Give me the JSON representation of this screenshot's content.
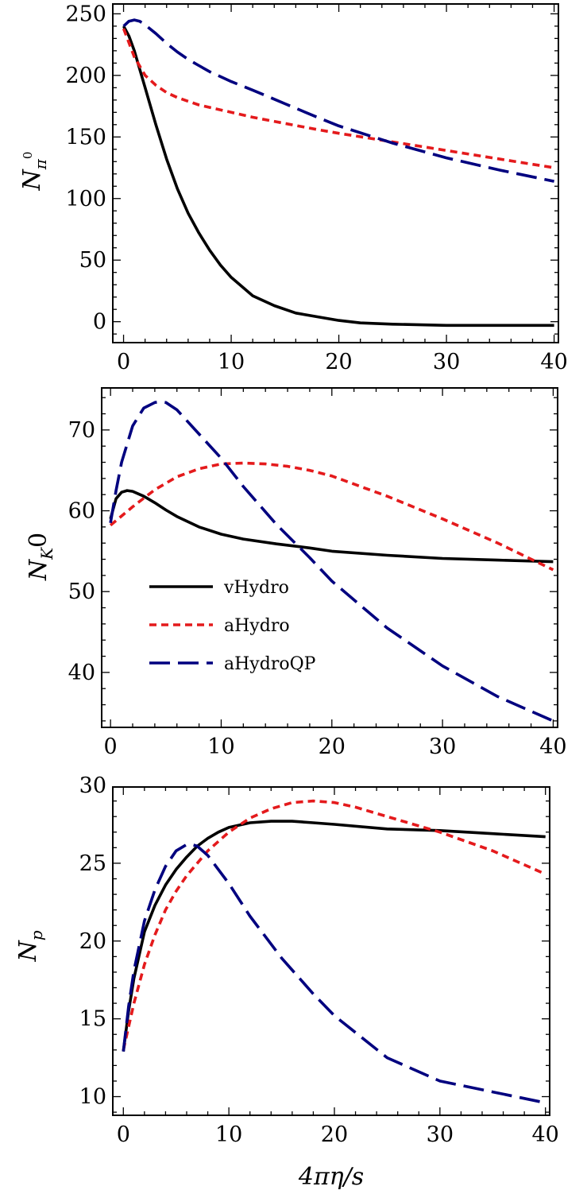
{
  "styles": {
    "vHydro": {
      "color": "#000000",
      "dash": "",
      "width": 3.6
    },
    "aHydro": {
      "color": "#e41a1c",
      "dash": "9,6",
      "width": 3.6
    },
    "aHydroQP": {
      "color": "#00007f",
      "dash": "26,10",
      "width": 3.6
    }
  },
  "legend": {
    "entries": [
      "vHydro",
      "aHydro",
      "aHydroQP"
    ]
  },
  "chart_data": [
    {
      "type": "line",
      "ylabel": "N_{π⁰}",
      "ylabel_parts": {
        "main": "N",
        "sub": "π",
        "sup": "0"
      },
      "xlim": [
        -1,
        40.4
      ],
      "ylim": [
        -17,
        258
      ],
      "xticks": [
        0,
        10,
        20,
        30,
        40
      ],
      "yticks": [
        0,
        50,
        100,
        150,
        200,
        250
      ],
      "series": [
        {
          "name": "vHydro",
          "x": [
            0,
            0.5,
            1,
            2,
            3,
            4,
            5,
            6,
            7,
            8,
            9,
            10,
            12,
            14,
            16,
            18,
            20,
            22,
            25,
            30,
            35,
            40
          ],
          "y": [
            240,
            232,
            220,
            190,
            160,
            132,
            108,
            88,
            72,
            58,
            46,
            36,
            21,
            13,
            7,
            4,
            1,
            -1,
            -2,
            -3,
            -3,
            -3
          ]
        },
        {
          "name": "aHydro",
          "x": [
            0,
            1,
            2,
            3,
            4,
            5,
            6,
            7,
            8,
            10,
            12,
            15,
            18,
            20,
            25,
            30,
            35,
            40
          ],
          "y": [
            238,
            215,
            200,
            192,
            186,
            182,
            179,
            176,
            174,
            170,
            166,
            161,
            156,
            153,
            146,
            139,
            132,
            125
          ]
        },
        {
          "name": "aHydroQP",
          "x": [
            0,
            0.5,
            1,
            1.5,
            2,
            3,
            4,
            5,
            6,
            7,
            8,
            10,
            12,
            15,
            18,
            20,
            25,
            30,
            35,
            40
          ],
          "y": [
            240,
            244,
            245,
            244,
            241,
            234,
            226,
            219,
            213,
            208,
            203,
            195,
            188,
            177,
            166,
            159,
            145,
            133,
            123,
            114
          ]
        }
      ]
    },
    {
      "type": "line",
      "ylabel": "N_{K}0",
      "ylabel_parts": {
        "main": "N",
        "sub": "K",
        "tail": "0"
      },
      "xlim": [
        -0.8,
        40.4
      ],
      "ylim": [
        33.2,
        75.2
      ],
      "xticks": [
        0,
        10,
        20,
        30,
        40
      ],
      "yticks": [
        40,
        50,
        60,
        70
      ],
      "series": [
        {
          "name": "vHydro",
          "x": [
            0,
            0.5,
            1,
            1.5,
            2,
            3,
            4,
            5,
            6,
            8,
            10,
            12,
            15,
            18,
            20,
            25,
            30,
            35,
            40
          ],
          "y": [
            59,
            61.5,
            62.3,
            62.5,
            62.4,
            61.8,
            61,
            60.1,
            59.3,
            58,
            57.1,
            56.5,
            55.9,
            55.4,
            55,
            54.5,
            54.1,
            53.9,
            53.7
          ]
        },
        {
          "name": "aHydro",
          "x": [
            0,
            2,
            4,
            6,
            8,
            10,
            12,
            14,
            16,
            18,
            20,
            25,
            30,
            35,
            40
          ],
          "y": [
            58.2,
            60.5,
            62.6,
            64.2,
            65.2,
            65.8,
            65.9,
            65.8,
            65.5,
            65,
            64.3,
            61.8,
            59,
            56,
            52.7
          ]
        },
        {
          "name": "aHydroQP",
          "x": [
            0,
            0.5,
            1,
            2,
            3,
            4,
            4.5,
            5,
            6,
            8,
            10,
            12,
            15,
            18,
            20,
            25,
            30,
            35,
            40
          ],
          "y": [
            58.5,
            62.5,
            66,
            70.5,
            72.7,
            73.4,
            73.5,
            73.4,
            72.5,
            69.5,
            66.5,
            63,
            58.3,
            54.2,
            51.3,
            45.5,
            40.8,
            37,
            34
          ]
        }
      ]
    },
    {
      "type": "line",
      "xlabel": "4πη/s",
      "ylabel": "N_p",
      "ylabel_parts": {
        "main": "N",
        "sub": "p"
      },
      "xlim": [
        -1,
        40.4
      ],
      "ylim": [
        8.8,
        29.9
      ],
      "xticks": [
        0,
        10,
        20,
        30,
        40
      ],
      "yticks": [
        10,
        15,
        20,
        25,
        30
      ],
      "series": [
        {
          "name": "vHydro",
          "x": [
            0,
            0.5,
            1,
            2,
            3,
            4,
            5,
            6,
            7,
            8,
            9,
            10,
            12,
            14,
            16,
            18,
            20,
            25,
            30,
            35,
            40
          ],
          "y": [
            12.9,
            15.5,
            17.6,
            20.6,
            22.3,
            23.6,
            24.6,
            25.4,
            26.1,
            26.6,
            27,
            27.3,
            27.6,
            27.7,
            27.7,
            27.6,
            27.5,
            27.2,
            27.1,
            26.9,
            26.7
          ]
        },
        {
          "name": "aHydro",
          "x": [
            0,
            1,
            2,
            3,
            4,
            5,
            6,
            8,
            10,
            12,
            14,
            16,
            18,
            20,
            22,
            25,
            30,
            35,
            40
          ],
          "y": [
            13,
            16,
            18.5,
            20.4,
            22,
            23.2,
            24.2,
            25.8,
            27,
            27.9,
            28.5,
            28.9,
            29,
            28.9,
            28.6,
            28,
            27,
            25.8,
            24.3
          ]
        },
        {
          "name": "aHydroQP",
          "x": [
            0,
            0.5,
            1,
            2,
            3,
            4,
            5,
            6,
            6.5,
            7,
            8,
            10,
            12,
            15,
            18,
            20,
            25,
            30,
            35,
            40
          ],
          "y": [
            12.9,
            15.8,
            18.1,
            21.3,
            23.3,
            24.8,
            25.8,
            26.2,
            26.2,
            26.1,
            25.5,
            23.7,
            21.6,
            18.9,
            16.6,
            15.2,
            12.5,
            11,
            10.3,
            9.6
          ]
        }
      ]
    }
  ]
}
